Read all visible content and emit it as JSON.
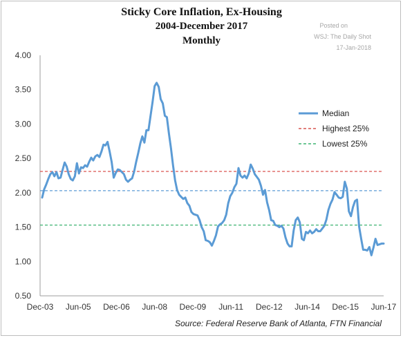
{
  "chart_data": {
    "type": "line",
    "title": "Sticky Core Inflation, Ex-Housing",
    "subtitle_lines": [
      "2004-December 2017",
      "Monthly"
    ],
    "posted_lines": [
      "Posted on",
      "WSJ: The Daily Shot",
      "17-Jan-2018"
    ],
    "source": "Source:  Federal Reserve Bank of Atlanta, FTN Financial",
    "xlabel": "",
    "ylabel": "",
    "x_tick_labels": [
      "Dec-03",
      "Jun-05",
      "Dec-06",
      "Jun-08",
      "Dec-09",
      "Jun-11",
      "Dec-12",
      "Jun-14",
      "Dec-15",
      "Jun-17"
    ],
    "y_tick_labels": [
      "0.50",
      "1.00",
      "1.50",
      "2.00",
      "2.50",
      "3.00",
      "3.50",
      "4.00"
    ],
    "ylim": [
      0.5,
      4.0
    ],
    "x_start": "2003-12",
    "x_end": "2017-12",
    "grid": false,
    "legend_position": "right",
    "legend": [
      "Median",
      "Highest 25%",
      "Lowest 25%"
    ],
    "colors": {
      "series": "#5b9bd5",
      "highest": "#d9534f",
      "lowest": "#3cb371",
      "median_ref": "#5b9bd5",
      "axis": "#9e9e9e"
    },
    "series": [
      {
        "name": "Median",
        "points": [
          [
            "2004-01",
            1.93
          ],
          [
            "2004-02",
            2.05
          ],
          [
            "2004-03",
            2.12
          ],
          [
            "2004-04",
            2.2
          ],
          [
            "2004-05",
            2.27
          ],
          [
            "2004-06",
            2.3
          ],
          [
            "2004-07",
            2.24
          ],
          [
            "2004-08",
            2.3
          ],
          [
            "2004-09",
            2.21
          ],
          [
            "2004-10",
            2.22
          ],
          [
            "2004-11",
            2.33
          ],
          [
            "2004-12",
            2.44
          ],
          [
            "2005-01",
            2.38
          ],
          [
            "2005-02",
            2.27
          ],
          [
            "2005-03",
            2.2
          ],
          [
            "2005-04",
            2.18
          ],
          [
            "2005-05",
            2.24
          ],
          [
            "2005-06",
            2.43
          ],
          [
            "2005-07",
            2.28
          ],
          [
            "2005-08",
            2.37
          ],
          [
            "2005-09",
            2.36
          ],
          [
            "2005-10",
            2.4
          ],
          [
            "2005-11",
            2.38
          ],
          [
            "2005-12",
            2.45
          ],
          [
            "2006-01",
            2.51
          ],
          [
            "2006-02",
            2.47
          ],
          [
            "2006-03",
            2.53
          ],
          [
            "2006-04",
            2.55
          ],
          [
            "2006-05",
            2.52
          ],
          [
            "2006-06",
            2.6
          ],
          [
            "2006-07",
            2.7
          ],
          [
            "2006-08",
            2.69
          ],
          [
            "2006-09",
            2.74
          ],
          [
            "2006-10",
            2.6
          ],
          [
            "2006-11",
            2.45
          ],
          [
            "2006-12",
            2.22
          ],
          [
            "2007-01",
            2.29
          ],
          [
            "2007-02",
            2.34
          ],
          [
            "2007-03",
            2.33
          ],
          [
            "2007-04",
            2.3
          ],
          [
            "2007-05",
            2.27
          ],
          [
            "2007-06",
            2.19
          ],
          [
            "2007-07",
            2.16
          ],
          [
            "2007-08",
            2.19
          ],
          [
            "2007-09",
            2.21
          ],
          [
            "2007-10",
            2.31
          ],
          [
            "2007-11",
            2.45
          ],
          [
            "2007-12",
            2.58
          ],
          [
            "2008-01",
            2.72
          ],
          [
            "2008-02",
            2.82
          ],
          [
            "2008-03",
            2.73
          ],
          [
            "2008-04",
            2.91
          ],
          [
            "2008-05",
            2.91
          ],
          [
            "2008-06",
            3.12
          ],
          [
            "2008-07",
            3.32
          ],
          [
            "2008-08",
            3.55
          ],
          [
            "2008-09",
            3.6
          ],
          [
            "2008-10",
            3.54
          ],
          [
            "2008-11",
            3.36
          ],
          [
            "2008-12",
            3.3
          ],
          [
            "2009-01",
            3.12
          ],
          [
            "2009-02",
            3.1
          ],
          [
            "2009-03",
            2.86
          ],
          [
            "2009-04",
            2.65
          ],
          [
            "2009-05",
            2.4
          ],
          [
            "2009-06",
            2.18
          ],
          [
            "2009-07",
            2.04
          ],
          [
            "2009-08",
            1.97
          ],
          [
            "2009-09",
            1.94
          ],
          [
            "2009-10",
            1.91
          ],
          [
            "2009-11",
            1.93
          ],
          [
            "2009-12",
            1.85
          ],
          [
            "2010-01",
            1.81
          ],
          [
            "2010-02",
            1.72
          ],
          [
            "2010-03",
            1.69
          ],
          [
            "2010-04",
            1.68
          ],
          [
            "2010-05",
            1.67
          ],
          [
            "2010-06",
            1.6
          ],
          [
            "2010-07",
            1.5
          ],
          [
            "2010-08",
            1.44
          ],
          [
            "2010-09",
            1.31
          ],
          [
            "2010-10",
            1.3
          ],
          [
            "2010-11",
            1.28
          ],
          [
            "2010-12",
            1.23
          ],
          [
            "2011-01",
            1.3
          ],
          [
            "2011-02",
            1.38
          ],
          [
            "2011-03",
            1.51
          ],
          [
            "2011-04",
            1.54
          ],
          [
            "2011-05",
            1.56
          ],
          [
            "2011-06",
            1.6
          ],
          [
            "2011-07",
            1.68
          ],
          [
            "2011-08",
            1.85
          ],
          [
            "2011-09",
            1.95
          ],
          [
            "2011-10",
            2.0
          ],
          [
            "2011-11",
            2.08
          ],
          [
            "2011-12",
            2.13
          ],
          [
            "2012-01",
            2.36
          ],
          [
            "2012-02",
            2.25
          ],
          [
            "2012-03",
            2.22
          ],
          [
            "2012-04",
            2.25
          ],
          [
            "2012-05",
            2.21
          ],
          [
            "2012-06",
            2.28
          ],
          [
            "2012-07",
            2.41
          ],
          [
            "2012-08",
            2.35
          ],
          [
            "2012-09",
            2.27
          ],
          [
            "2012-10",
            2.23
          ],
          [
            "2012-11",
            2.19
          ],
          [
            "2012-12",
            2.1
          ],
          [
            "2013-01",
            1.97
          ],
          [
            "2013-02",
            2.04
          ],
          [
            "2013-03",
            1.86
          ],
          [
            "2013-04",
            1.75
          ],
          [
            "2013-05",
            1.6
          ],
          [
            "2013-06",
            1.59
          ],
          [
            "2013-07",
            1.53
          ],
          [
            "2013-08",
            1.52
          ],
          [
            "2013-09",
            1.5
          ],
          [
            "2013-10",
            1.52
          ],
          [
            "2013-11",
            1.48
          ],
          [
            "2013-12",
            1.35
          ],
          [
            "2014-01",
            1.26
          ],
          [
            "2014-02",
            1.22
          ],
          [
            "2014-03",
            1.22
          ],
          [
            "2014-04",
            1.45
          ],
          [
            "2014-05",
            1.6
          ],
          [
            "2014-06",
            1.64
          ],
          [
            "2014-07",
            1.57
          ],
          [
            "2014-08",
            1.33
          ],
          [
            "2014-09",
            1.31
          ],
          [
            "2014-10",
            1.43
          ],
          [
            "2014-11",
            1.41
          ],
          [
            "2014-12",
            1.45
          ],
          [
            "2015-01",
            1.41
          ],
          [
            "2015-02",
            1.43
          ],
          [
            "2015-03",
            1.47
          ],
          [
            "2015-04",
            1.44
          ],
          [
            "2015-05",
            1.44
          ],
          [
            "2015-06",
            1.48
          ],
          [
            "2015-07",
            1.52
          ],
          [
            "2015-08",
            1.61
          ],
          [
            "2015-09",
            1.75
          ],
          [
            "2015-10",
            1.84
          ],
          [
            "2015-11",
            1.9
          ],
          [
            "2015-12",
            2.01
          ],
          [
            "2016-01",
            1.97
          ],
          [
            "2016-02",
            1.93
          ],
          [
            "2016-03",
            1.92
          ],
          [
            "2016-04",
            1.94
          ],
          [
            "2016-05",
            2.16
          ],
          [
            "2016-06",
            2.06
          ],
          [
            "2016-07",
            1.73
          ],
          [
            "2016-08",
            1.66
          ],
          [
            "2016-09",
            1.79
          ],
          [
            "2016-10",
            1.88
          ],
          [
            "2016-11",
            1.9
          ],
          [
            "2016-12",
            1.51
          ],
          [
            "2017-01",
            1.33
          ],
          [
            "2017-02",
            1.17
          ],
          [
            "2017-03",
            1.17
          ],
          [
            "2017-04",
            1.16
          ],
          [
            "2017-05",
            1.21
          ],
          [
            "2017-06",
            1.09
          ],
          [
            "2017-07",
            1.2
          ],
          [
            "2017-08",
            1.33
          ],
          [
            "2017-09",
            1.24
          ],
          [
            "2017-10",
            1.25
          ],
          [
            "2017-11",
            1.26
          ],
          [
            "2017-12",
            1.26
          ]
        ]
      }
    ],
    "reference_lines": [
      {
        "name": "Highest 25%",
        "value": 2.31,
        "style": "dashed",
        "color_key": "highest"
      },
      {
        "name": "Median level",
        "value": 2.03,
        "style": "dashed",
        "color_key": "median_ref"
      },
      {
        "name": "Lowest 25%",
        "value": 1.53,
        "style": "dashed",
        "color_key": "lowest"
      }
    ]
  }
}
